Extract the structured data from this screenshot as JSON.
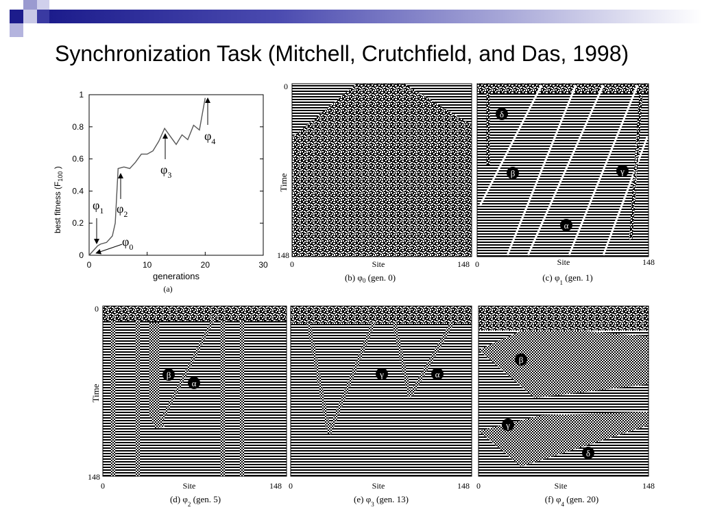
{
  "slide": {
    "title": "Synchronization Task (Mitchell, Crutchfield, and Das, 1998)"
  },
  "colors": {
    "bar_dark": "#1c1c8c",
    "bar_mid": "#4b4bb0",
    "bar_light": "#a8a8d8"
  },
  "fitness_chart": {
    "caption": "(a)",
    "ylabel": "best fitness   (F",
    "ylabel_sub": "100",
    "ylabel_end": " )",
    "xlabel": "generations",
    "x_ticks": [
      "0",
      "10",
      "20",
      "30"
    ],
    "y_ticks": [
      "0",
      "0.2",
      "0.4",
      "0.6",
      "0.8",
      "1"
    ],
    "annotations": [
      {
        "sym": "φ",
        "sub": "0"
      },
      {
        "sym": "φ",
        "sub": "1"
      },
      {
        "sym": "φ",
        "sub": "2"
      },
      {
        "sym": "φ",
        "sub": "3"
      },
      {
        "sym": "φ",
        "sub": "4"
      }
    ]
  },
  "chart_data": {
    "type": "line",
    "xlabel": "generations",
    "ylabel": "best fitness (F100)",
    "xlim": [
      0,
      30
    ],
    "ylim": [
      0,
      1
    ],
    "x": [
      0,
      1,
      1.5,
      2,
      3,
      4,
      4.5,
      5,
      6,
      7,
      8,
      9,
      10,
      11,
      12,
      13,
      14,
      15,
      16,
      17,
      18,
      19,
      20
    ],
    "y": [
      0.0,
      0.04,
      0.06,
      0.07,
      0.08,
      0.12,
      0.2,
      0.54,
      0.55,
      0.54,
      0.58,
      0.63,
      0.63,
      0.65,
      0.71,
      0.79,
      0.74,
      0.69,
      0.75,
      0.72,
      0.81,
      0.78,
      0.98
    ]
  },
  "panels": [
    {
      "caption": "(b)  ",
      "sym": "φ",
      "sub": "0",
      "gen": "(gen. 0)",
      "time_label": "Time",
      "t0": "0",
      "t1": "148",
      "site_label": "Site",
      "s0": "0",
      "s1": "148"
    },
    {
      "caption": "(c)  ",
      "sym": "φ",
      "sub": "1",
      "gen": "(gen. 1)",
      "site_label": "Site",
      "s0": "0",
      "s1": "148",
      "markers": [
        "δ",
        "β",
        "γ",
        "α"
      ]
    },
    {
      "caption": "(d)  ",
      "sym": "φ",
      "sub": "2",
      "gen": "(gen. 5)",
      "time_label": "Time",
      "t0": "0",
      "t1": "148",
      "site_label": "Site",
      "s0": "0",
      "s1": "148",
      "markers": [
        "β",
        "α"
      ]
    },
    {
      "caption": "(e)  ",
      "sym": "φ",
      "sub": "3",
      "gen": "(gen. 13)",
      "site_label": "Site",
      "s0": "0",
      "s1": "148",
      "markers": [
        "γ",
        "α"
      ]
    },
    {
      "caption": "(f)  ",
      "sym": "φ",
      "sub": "4",
      "gen": "(gen. 20)",
      "site_label": "Site",
      "s0": "0",
      "s1": "148",
      "markers": [
        "β",
        "γ",
        "δ"
      ]
    }
  ]
}
